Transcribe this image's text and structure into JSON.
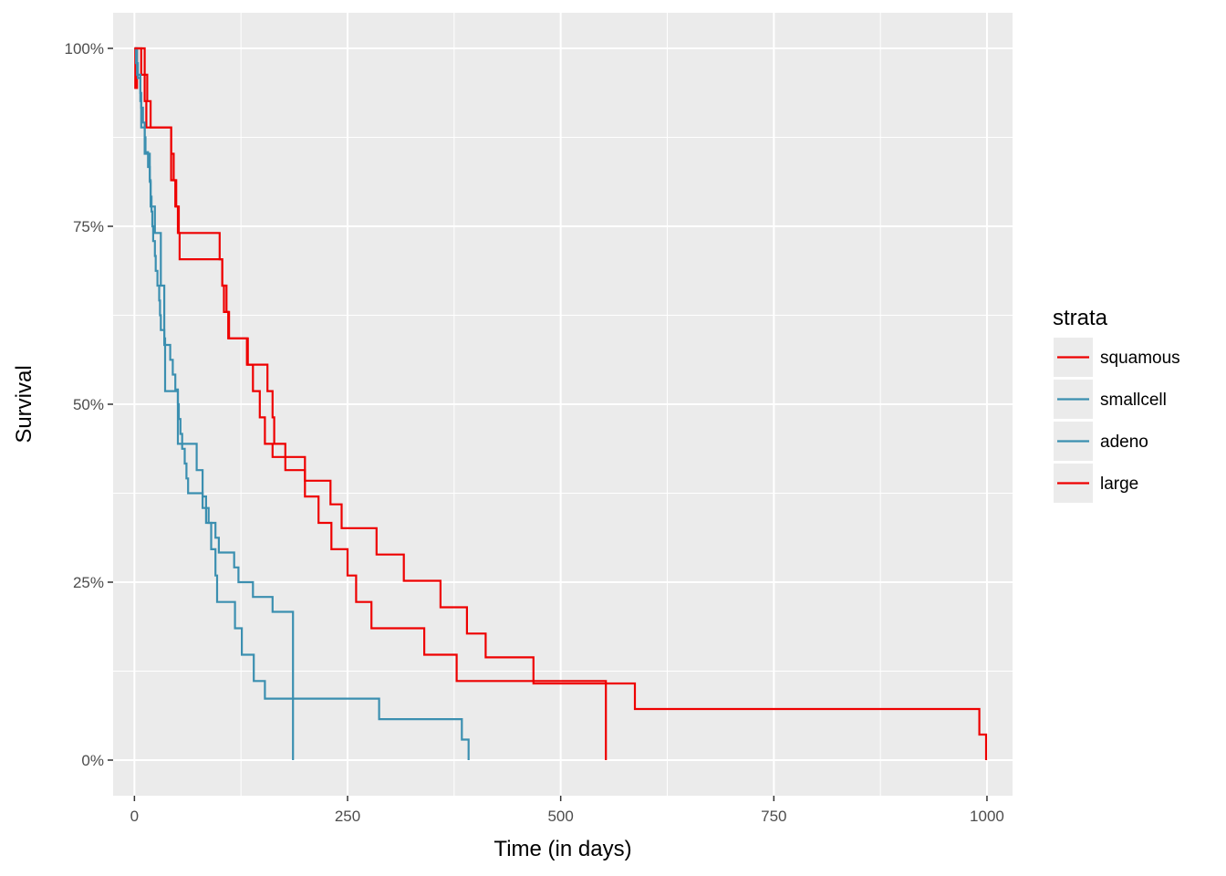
{
  "chart_data": {
    "type": "line",
    "step": true,
    "title": "",
    "xlabel": "Time (in days)",
    "ylabel": "Survival",
    "xlim": [
      -25,
      1030
    ],
    "ylim": [
      -0.05,
      1.05
    ],
    "x_ticks": [
      0,
      250,
      500,
      750,
      1000
    ],
    "x_tick_labels": [
      "0",
      "250",
      "500",
      "750",
      "1000"
    ],
    "y_ticks": [
      0,
      0.25,
      0.5,
      0.75,
      1.0
    ],
    "y_tick_labels": [
      "0%",
      "25%",
      "50%",
      "75%",
      "100%"
    ],
    "grid": true,
    "legend": {
      "title": "strata",
      "position": "right"
    },
    "series": [
      {
        "name": "squamous",
        "color": "#ee0000",
        "x": [
          0,
          1,
          3,
          8,
          12,
          14,
          18,
          21,
          25,
          31,
          36,
          43,
          46,
          48,
          51,
          54,
          100,
          103,
          108,
          110,
          112,
          113,
          132,
          139,
          147,
          153,
          162,
          200,
          230,
          243,
          284,
          316,
          359,
          390,
          412,
          468,
          587,
          991,
          999
        ],
        "y": [
          1.0,
          0.9444,
          1.0,
          0.963,
          0.9259,
          0.8889,
          0.8889,
          0.8889,
          0.8889,
          0.8889,
          0.8889,
          0.8519,
          0.8148,
          0.7778,
          0.7407,
          0.7407,
          0.7037,
          0.6667,
          0.6296,
          0.5926,
          0.5926,
          0.5926,
          0.5556,
          0.5185,
          0.4815,
          0.4444,
          0.4259,
          0.3926,
          0.3593,
          0.3259,
          0.2889,
          0.2519,
          0.2148,
          0.1778,
          0.1444,
          0.1077,
          0.0718,
          0.0359,
          0.0
        ]
      },
      {
        "name": "smallcell",
        "color": "#3b8fb0",
        "x": [
          0,
          2,
          4,
          7,
          8,
          10,
          12,
          13,
          16,
          18,
          19,
          20,
          21,
          22,
          24,
          25,
          27,
          29,
          30,
          31,
          35,
          42,
          45,
          48,
          51,
          52,
          54,
          56,
          59,
          61,
          63,
          80,
          87,
          95,
          99,
          117,
          122,
          139,
          162,
          186
        ],
        "y": [
          1.0,
          0.9792,
          0.9583,
          0.9375,
          0.9167,
          0.8958,
          0.875,
          0.8542,
          0.8333,
          0.8125,
          0.7917,
          0.7708,
          0.75,
          0.7292,
          0.7083,
          0.6875,
          0.6667,
          0.6458,
          0.625,
          0.6042,
          0.5833,
          0.5625,
          0.5417,
          0.5208,
          0.5,
          0.4792,
          0.4583,
          0.4375,
          0.4167,
          0.3958,
          0.375,
          0.3542,
          0.3333,
          0.3125,
          0.2917,
          0.2708,
          0.25,
          0.2292,
          0.2083,
          0.0
        ]
      },
      {
        "name": "adeno",
        "color": "#3b8fb0",
        "x": [
          0,
          3,
          7,
          8,
          12,
          18,
          19,
          24,
          31,
          35,
          36,
          51,
          52,
          73,
          80,
          84,
          90,
          92,
          95,
          97,
          105,
          110,
          118,
          126,
          131,
          140,
          153,
          287,
          384,
          392
        ],
        "y": [
          1.0,
          0.963,
          0.9259,
          0.8889,
          0.8519,
          0.8148,
          0.7778,
          0.7407,
          0.6667,
          0.5926,
          0.5185,
          0.4444,
          0.4444,
          0.4074,
          0.3704,
          0.3333,
          0.2963,
          0.2963,
          0.2593,
          0.2222,
          0.2222,
          0.2222,
          0.1852,
          0.1481,
          0.1481,
          0.1111,
          0.0864,
          0.0576,
          0.0288,
          0.0
        ]
      },
      {
        "name": "large",
        "color": "#ee0000",
        "x": [
          0,
          12,
          15,
          19,
          43,
          49,
          52,
          53,
          100,
          103,
          105,
          111,
          133,
          156,
          162,
          164,
          177,
          200,
          216,
          231,
          250,
          260,
          278,
          340,
          378,
          553
        ],
        "y": [
          1.0,
          0.963,
          0.9259,
          0.8889,
          0.8148,
          0.7778,
          0.7407,
          0.7037,
          0.7037,
          0.6667,
          0.6296,
          0.5926,
          0.5556,
          0.5185,
          0.4815,
          0.4444,
          0.4074,
          0.3704,
          0.3333,
          0.2963,
          0.2593,
          0.2222,
          0.1852,
          0.1481,
          0.1111,
          0.0
        ]
      }
    ]
  }
}
